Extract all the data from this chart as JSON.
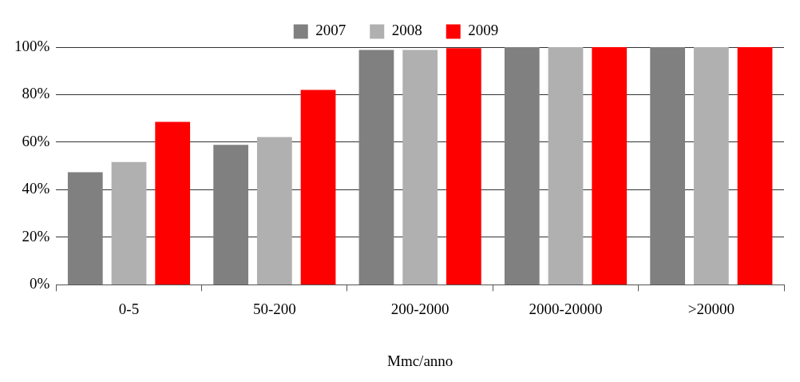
{
  "chart_data": {
    "type": "bar",
    "xlabel": "Mmc/anno",
    "categories": [
      "0-5",
      "50-200",
      "200-2000",
      "2000-20000",
      ">20000"
    ],
    "series": [
      {
        "name": "2007",
        "color": "#808080",
        "values": [
          47.4,
          58.9,
          98.8,
          100,
          100
        ]
      },
      {
        "name": "2008",
        "color": "#b0b0b0",
        "values": [
          51.7,
          62.2,
          98.8,
          100,
          100
        ]
      },
      {
        "name": "2009",
        "color": "#ff0000",
        "values": [
          68.6,
          82.0,
          99.6,
          100,
          100
        ]
      }
    ],
    "ylim": [
      0,
      100
    ],
    "yticks": [
      {
        "value": 0,
        "label": "0%"
      },
      {
        "value": 20,
        "label": "20%"
      },
      {
        "value": 40,
        "label": "40%"
      },
      {
        "value": 60,
        "label": "60%"
      },
      {
        "value": 80,
        "label": "80%"
      },
      {
        "value": 100,
        "label": "100%"
      }
    ],
    "grid": "y",
    "legend": "top"
  }
}
